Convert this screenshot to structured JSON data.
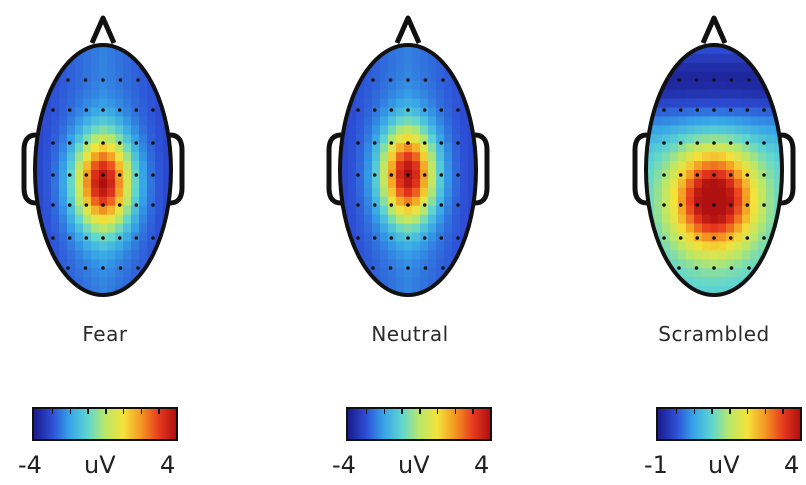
{
  "panels": [
    {
      "label": "Fear",
      "colorbar": {
        "min": "-4",
        "unit": "uV",
        "max": "4"
      },
      "map_type": "central-posterior-positive"
    },
    {
      "label": "Neutral",
      "colorbar": {
        "min": "-4",
        "unit": "uV",
        "max": "4"
      },
      "map_type": "central-positive"
    },
    {
      "label": "Scrambled",
      "colorbar": {
        "min": "-1",
        "unit": "uV",
        "max": "4"
      },
      "map_type": "frontal-negative-posterior-positive"
    }
  ],
  "colormap": [
    "#1a1a8c",
    "#2d4fd6",
    "#36a3e8",
    "#5fd6d0",
    "#b8e86a",
    "#f4e23a",
    "#f49a22",
    "#e83a1e",
    "#b01010"
  ]
}
